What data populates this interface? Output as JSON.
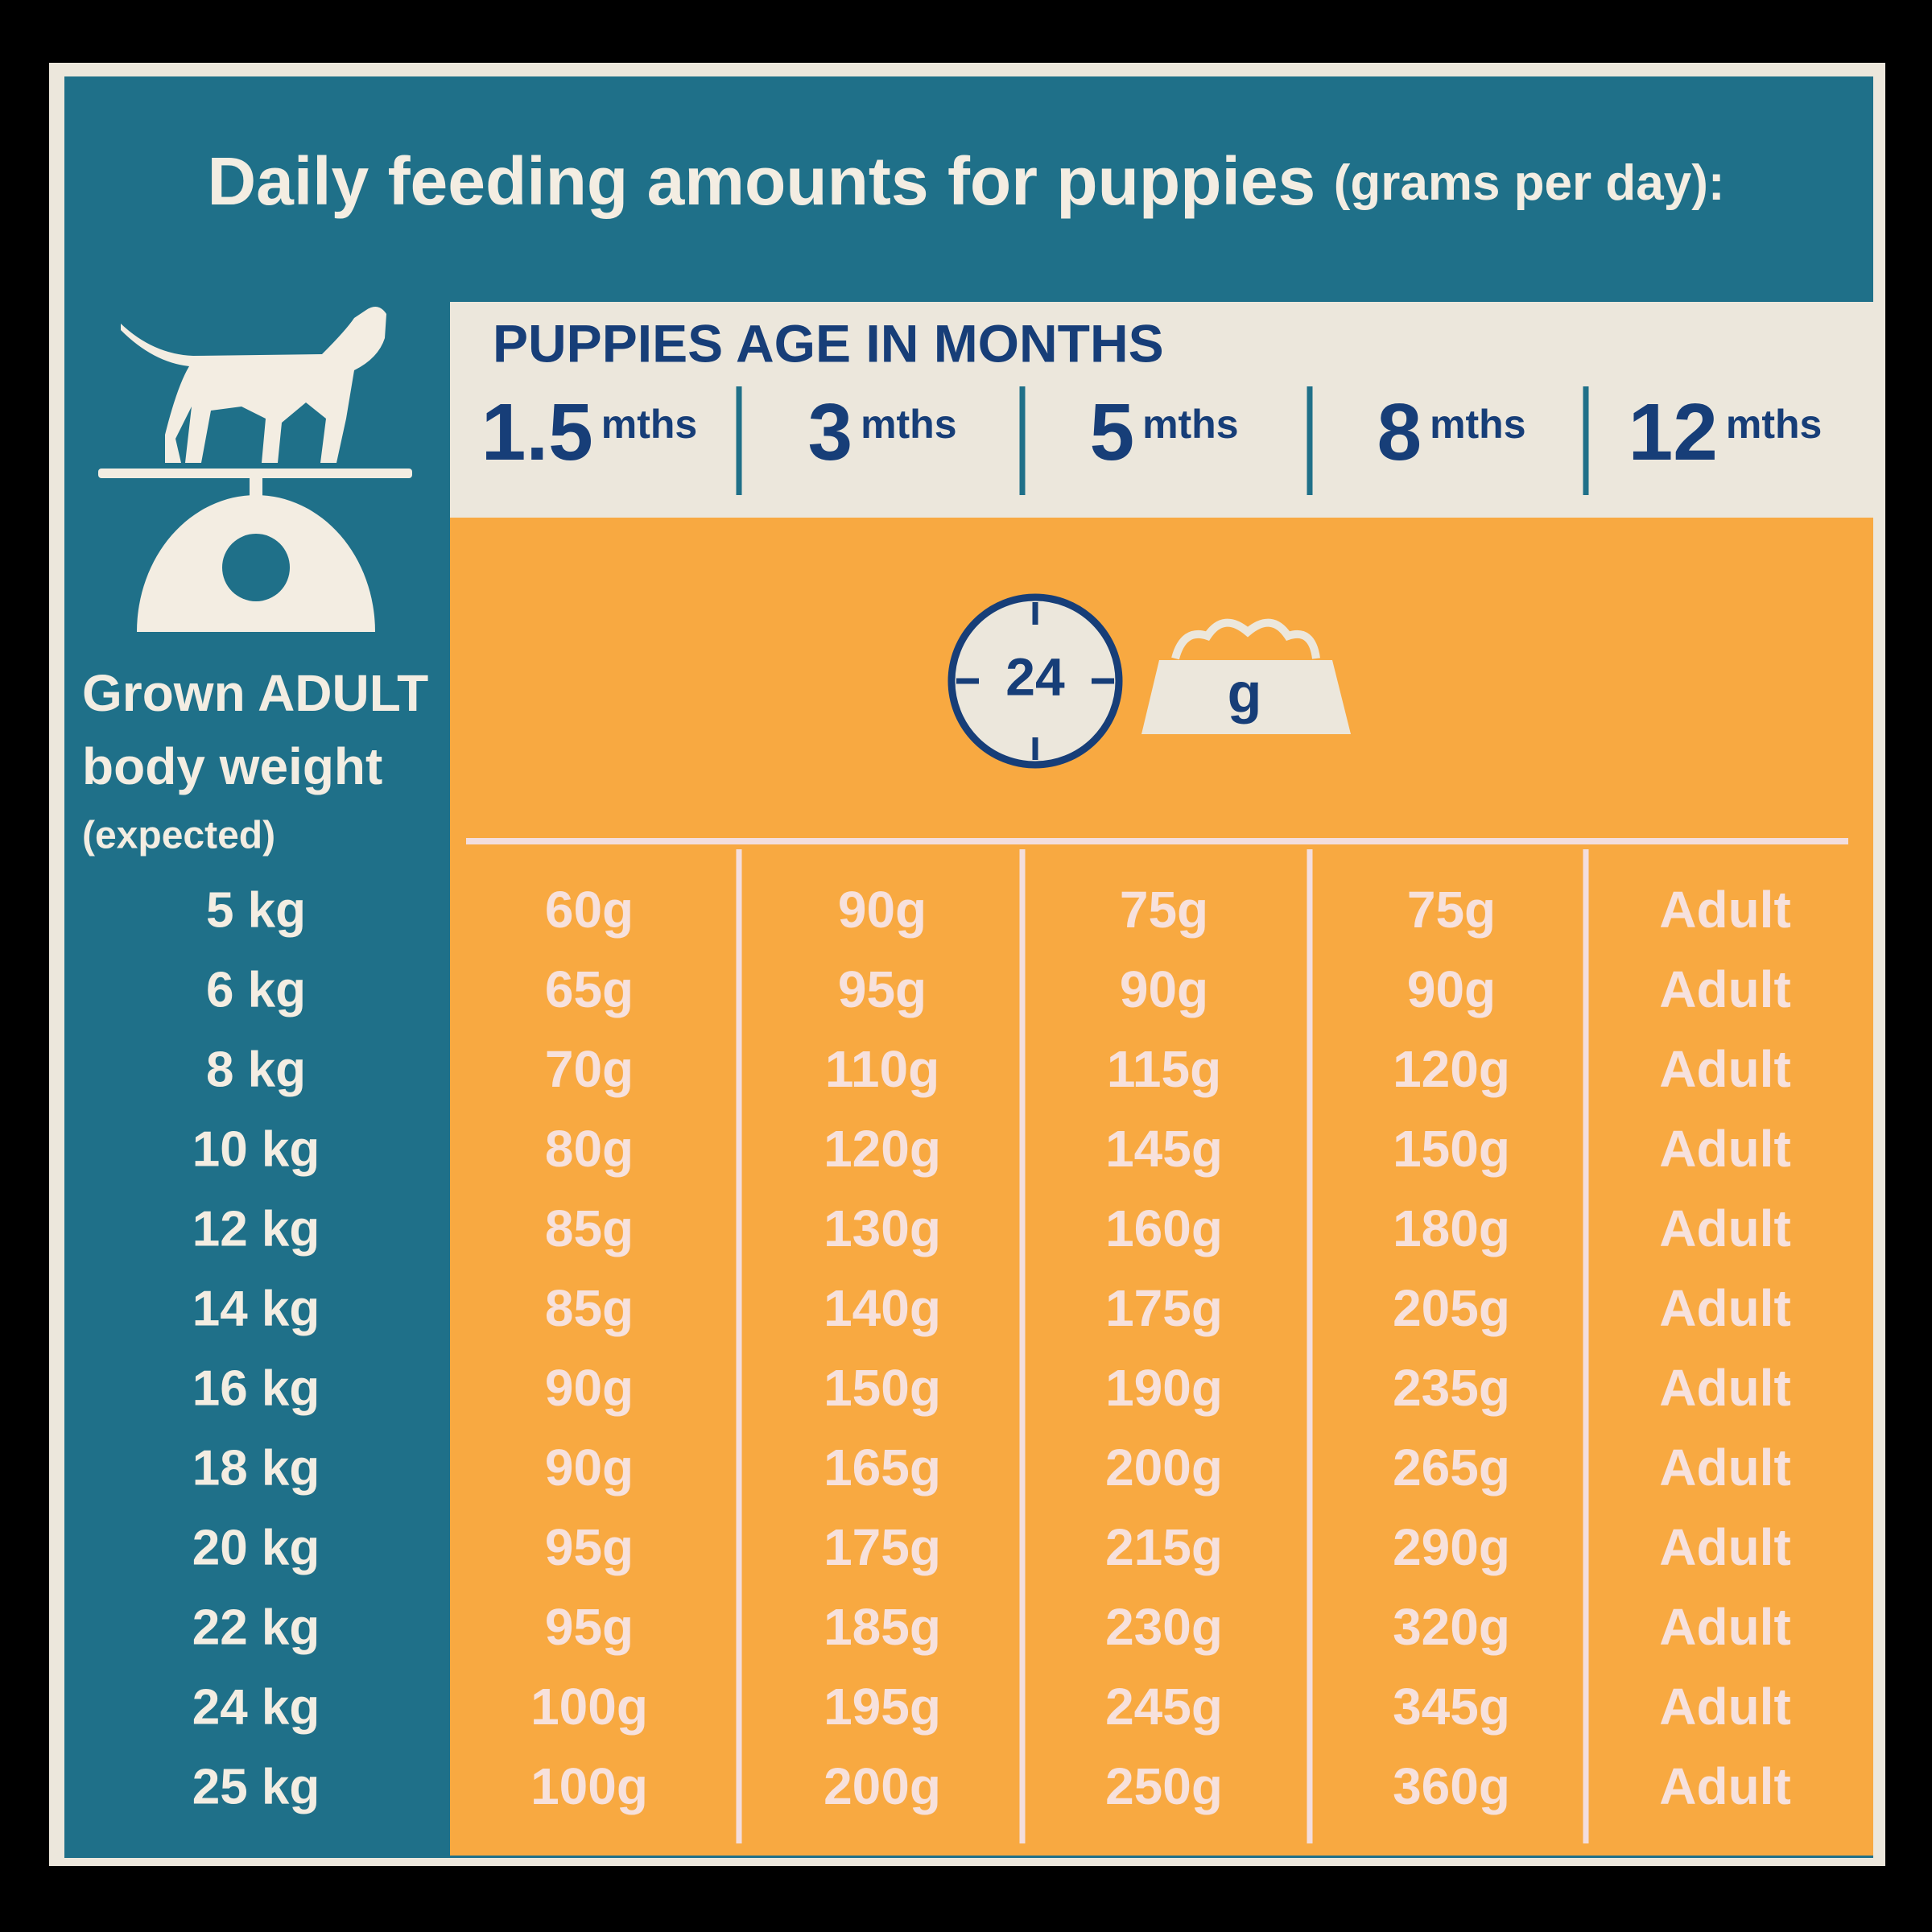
{
  "title": {
    "main": "Daily feeding amounts for puppies",
    "sub": "(grams per day):"
  },
  "left_header": [
    "Grown ADULT",
    "body weight",
    "(expected)"
  ],
  "age_header": "PUPPIES AGE IN MONTHS",
  "columns": [
    {
      "number": "1.5",
      "unit": "mths"
    },
    {
      "number": "3",
      "unit": "mths"
    },
    {
      "number": "5",
      "unit": "mths"
    },
    {
      "number": "8",
      "unit": "mths"
    },
    {
      "number": "12",
      "unit": "mths"
    }
  ],
  "icon": {
    "clock": "24",
    "bowl": "g"
  },
  "table": {
    "rows": [
      [
        "5 kg",
        "60g",
        "90g",
        "75g",
        "75g",
        "Adult"
      ],
      [
        "6 kg",
        "65g",
        "95g",
        "90g",
        "90g",
        "Adult"
      ],
      [
        "8 kg",
        "70g",
        "110g",
        "115g",
        "120g",
        "Adult"
      ],
      [
        "10 kg",
        "80g",
        "120g",
        "145g",
        "150g",
        "Adult"
      ],
      [
        "12 kg",
        "85g",
        "130g",
        "160g",
        "180g",
        "Adult"
      ],
      [
        "14 kg",
        "85g",
        "140g",
        "175g",
        "205g",
        "Adult"
      ],
      [
        "16 kg",
        "90g",
        "150g",
        "190g",
        "235g",
        "Adult"
      ],
      [
        "18 kg",
        "90g",
        "165g",
        "200g",
        "265g",
        "Adult"
      ],
      [
        "20 kg",
        "95g",
        "175g",
        "215g",
        "290g",
        "Adult"
      ],
      [
        "22 kg",
        "95g",
        "185g",
        "230g",
        "320g",
        "Adult"
      ],
      [
        "24 kg",
        "100g",
        "195g",
        "245g",
        "345g",
        "Adult"
      ],
      [
        "25 kg",
        "100g",
        "200g",
        "250g",
        "360g",
        "Adult"
      ]
    ]
  }
}
